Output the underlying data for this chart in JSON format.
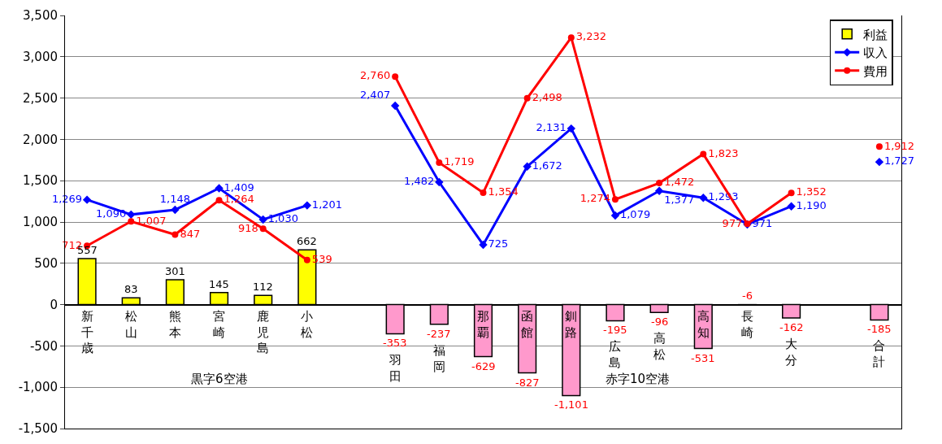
{
  "chart_data": {
    "type": "bar",
    "categories": [
      "新千歳",
      "松山",
      "熊本",
      "宮崎",
      "鹿児島",
      "小松",
      null,
      "羽田",
      "福岡",
      "那覇",
      "函館",
      "釧路",
      "広島",
      "高松",
      "高知",
      "長崎",
      "大分",
      null,
      "合計"
    ],
    "series": [
      {
        "name": "利益",
        "color": "#ff99cc",
        "colors": [
          "#ffff00",
          "#ffff00",
          "#ffff00",
          "#ffff00",
          "#ffff00",
          "#ffff00",
          null,
          "#ff99cc",
          "#ff99cc",
          "#ff99cc",
          "#ff99cc",
          "#ff99cc",
          "#ff99cc",
          "#ff99cc",
          "#ff99cc",
          "#ff99cc",
          "#ff99cc",
          null,
          "#ff99cc"
        ],
        "values": [
          557,
          83,
          301,
          145,
          112,
          662,
          null,
          -353,
          -237,
          -629,
          -827,
          -1101,
          -195,
          -96,
          -531,
          -6,
          -162,
          null,
          -185
        ],
        "value_labels": [
          "557",
          "83",
          "301",
          "145",
          "112",
          "662",
          null,
          "-353",
          "-237",
          "-629",
          "-827",
          "-1,101",
          "-195",
          "-96",
          "-531",
          "-6",
          "-162",
          null,
          "-185"
        ]
      },
      {
        "name": "収入",
        "type": "line",
        "color": "#0000ff",
        "marker": "diamond",
        "values": [
          1269,
          1090,
          1148,
          1409,
          1030,
          1201,
          null,
          2407,
          1482,
          725,
          1672,
          2131,
          1079,
          1377,
          1293,
          971,
          1190,
          null,
          1727
        ],
        "value_labels": [
          "1,269",
          "1,090",
          "1,148",
          "1,409",
          "1,030",
          "1,201",
          null,
          "2,407",
          "1,482",
          "725",
          "1,672",
          "2,131",
          "1,079",
          "1,377",
          "1,293",
          "971",
          "1,190",
          null,
          "1,727"
        ]
      },
      {
        "name": "費用",
        "type": "line",
        "color": "#ff0000",
        "marker": "circle",
        "values": [
          712,
          1007,
          847,
          1264,
          918,
          539,
          null,
          2760,
          1719,
          1354,
          2498,
          3232,
          1274,
          1472,
          1823,
          977,
          1352,
          null,
          1912
        ],
        "value_labels": [
          "712",
          "1,007",
          "847",
          "1,264",
          "918",
          "539",
          null,
          "2,760",
          "1,719",
          "1,354",
          "2,498",
          "3,232",
          "1,274",
          "1,472",
          "1,823",
          "977",
          "1,352",
          null,
          "1,912"
        ]
      }
    ],
    "annotations": [
      "黒字6空港",
      "赤字10空港"
    ],
    "ylim": [
      -1500,
      3500
    ],
    "yticks": [
      {
        "value": -1500,
        "label": "-1,500"
      },
      {
        "value": -1000,
        "label": "-1,000"
      },
      {
        "value": -500,
        "label": "-500"
      },
      0,
      {
        "value": 500,
        "label": "500"
      },
      {
        "value": 1000,
        "label": "1,000"
      },
      {
        "value": 1500,
        "label": "1,500"
      },
      {
        "value": 2000,
        "label": "2,000"
      },
      {
        "value": 2500,
        "label": "2,500"
      },
      {
        "value": 3000,
        "label": "3,000"
      },
      {
        "value": 3500,
        "label": "3,500"
      }
    ],
    "grid": "y",
    "legend": "top right",
    "tick_labels": "y"
  }
}
